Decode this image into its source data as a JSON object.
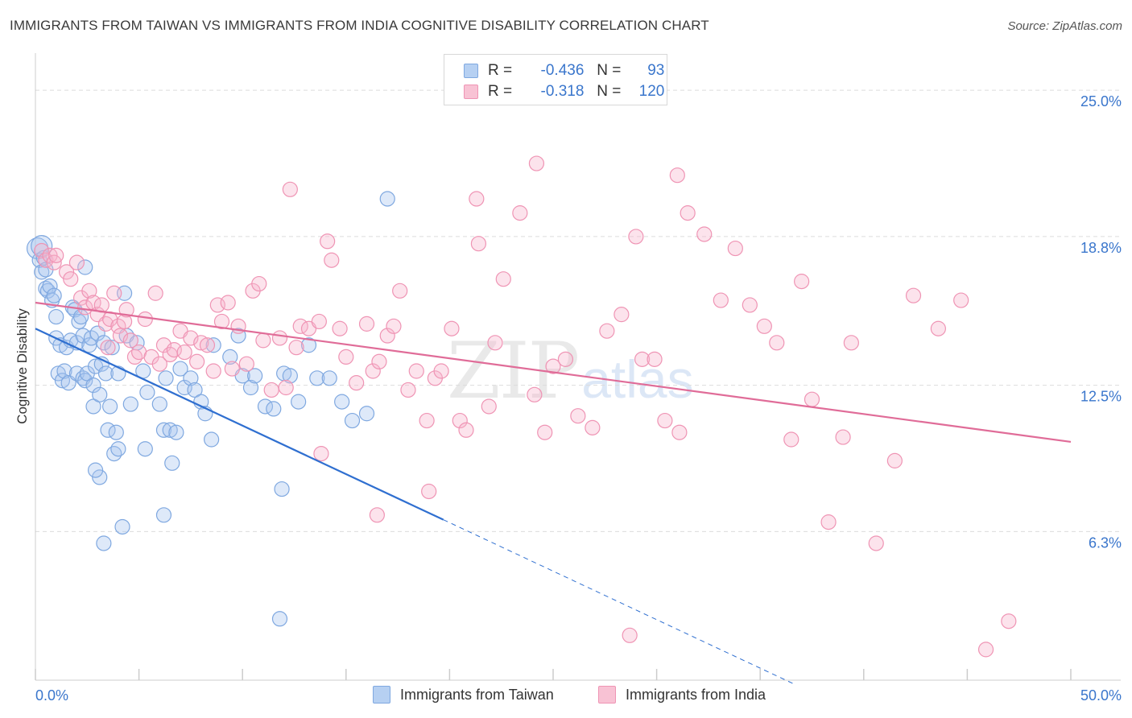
{
  "chart_data": {
    "type": "scatter",
    "title": "IMMIGRANTS FROM TAIWAN VS IMMIGRANTS FROM INDIA COGNITIVE DISABILITY CORRELATION CHART",
    "source": "Source: ZipAtlas.com",
    "xlabel": "",
    "ylabel": "Cognitive Disability",
    "xlim": [
      0,
      50
    ],
    "ylim": [
      0,
      26.2
    ],
    "x_tick_labels": [
      "0.0%",
      "50.0%"
    ],
    "y_ticks": [
      6.3,
      12.5,
      18.8,
      25.0
    ],
    "y_tick_labels": [
      "6.3%",
      "12.5%",
      "18.8%",
      "25.0%"
    ],
    "grid": true,
    "watermark": {
      "zip": "ZIP",
      "atlas": "atlas"
    },
    "legend": {
      "rows": [
        {
          "r_label": "R =",
          "r_value": "-0.436",
          "n_label": "N =",
          "n_value": "93"
        },
        {
          "r_label": "R =",
          "r_value": "-0.318",
          "n_label": "N =",
          "n_value": "120"
        }
      ]
    },
    "series": [
      {
        "name": "Immigrants from Taiwan",
        "color": "#7fa8e0",
        "fill": "#a9c6ee",
        "line_color": "#2f6fd0",
        "trend": {
          "x0": 0,
          "y0": 14.9,
          "x1": 19.7,
          "y1": 6.8,
          "dash_to_x": 36.7
        },
        "points": [
          [
            0.1,
            18.3
          ],
          [
            0.2,
            17.8
          ],
          [
            0.3,
            17.3
          ],
          [
            0.4,
            17.9
          ],
          [
            0.5,
            16.6
          ],
          [
            0.6,
            16.5
          ],
          [
            0.7,
            16.7
          ],
          [
            0.8,
            16.1
          ],
          [
            0.9,
            16.3
          ],
          [
            1.0,
            15.4
          ],
          [
            1.0,
            14.5
          ],
          [
            1.1,
            13.0
          ],
          [
            1.2,
            14.2
          ],
          [
            1.3,
            12.7
          ],
          [
            1.4,
            13.1
          ],
          [
            1.5,
            14.1
          ],
          [
            1.6,
            12.6
          ],
          [
            1.7,
            14.4
          ],
          [
            1.8,
            15.8
          ],
          [
            1.9,
            15.7
          ],
          [
            2.0,
            14.3
          ],
          [
            2.0,
            13.0
          ],
          [
            2.1,
            15.2
          ],
          [
            2.2,
            15.4
          ],
          [
            2.3,
            14.6
          ],
          [
            2.3,
            12.8
          ],
          [
            2.4,
            12.7
          ],
          [
            2.5,
            13.0
          ],
          [
            2.6,
            14.2
          ],
          [
            2.7,
            14.5
          ],
          [
            2.8,
            12.5
          ],
          [
            2.8,
            11.6
          ],
          [
            2.9,
            13.3
          ],
          [
            3.0,
            14.7
          ],
          [
            3.1,
            12.1
          ],
          [
            3.2,
            13.4
          ],
          [
            3.3,
            14.3
          ],
          [
            3.4,
            13.0
          ],
          [
            3.5,
            10.6
          ],
          [
            3.6,
            11.6
          ],
          [
            3.7,
            14.1
          ],
          [
            3.8,
            9.6
          ],
          [
            3.9,
            10.5
          ],
          [
            4.0,
            9.8
          ],
          [
            3.1,
            8.6
          ],
          [
            2.9,
            8.9
          ],
          [
            4.2,
            6.5
          ],
          [
            3.3,
            5.8
          ],
          [
            4.3,
            16.4
          ],
          [
            4.4,
            14.6
          ],
          [
            4.6,
            11.7
          ],
          [
            4.9,
            14.3
          ],
          [
            5.2,
            13.1
          ],
          [
            5.3,
            9.8
          ],
          [
            5.4,
            12.2
          ],
          [
            6.0,
            11.7
          ],
          [
            6.2,
            10.6
          ],
          [
            6.3,
            12.8
          ],
          [
            6.5,
            10.6
          ],
          [
            6.6,
            9.2
          ],
          [
            6.8,
            10.5
          ],
          [
            7.0,
            13.2
          ],
          [
            7.2,
            12.4
          ],
          [
            7.5,
            12.8
          ],
          [
            7.7,
            12.3
          ],
          [
            8.0,
            11.8
          ],
          [
            8.2,
            11.3
          ],
          [
            8.6,
            14.2
          ],
          [
            9.4,
            13.7
          ],
          [
            9.8,
            14.6
          ],
          [
            10.0,
            12.9
          ],
          [
            10.4,
            12.4
          ],
          [
            10.6,
            12.9
          ],
          [
            11.1,
            11.6
          ],
          [
            11.5,
            11.5
          ],
          [
            12.0,
            13.0
          ],
          [
            12.3,
            12.9
          ],
          [
            12.7,
            11.8
          ],
          [
            13.2,
            14.2
          ],
          [
            13.6,
            12.8
          ],
          [
            14.2,
            12.8
          ],
          [
            14.8,
            11.8
          ],
          [
            15.3,
            11.0
          ],
          [
            16.0,
            11.3
          ],
          [
            11.9,
            8.1
          ],
          [
            8.5,
            10.2
          ],
          [
            6.2,
            7.0
          ],
          [
            11.8,
            2.6
          ],
          [
            17.0,
            20.4
          ],
          [
            2.4,
            17.5
          ],
          [
            0.3,
            18.4
          ],
          [
            0.5,
            17.4
          ],
          [
            4.0,
            13.0
          ]
        ]
      },
      {
        "name": "Immigrants from India",
        "color": "#ef94b4",
        "fill": "#f7b6cc",
        "line_color": "#e06c98",
        "trend": {
          "x0": 0,
          "y0": 16.0,
          "x1": 50,
          "y1": 10.1
        },
        "points": [
          [
            0.3,
            18.2
          ],
          [
            0.5,
            17.8
          ],
          [
            0.7,
            18.0
          ],
          [
            0.9,
            17.7
          ],
          [
            1.0,
            18.0
          ],
          [
            1.5,
            17.3
          ],
          [
            1.7,
            17.0
          ],
          [
            2.0,
            17.7
          ],
          [
            2.2,
            16.2
          ],
          [
            2.4,
            15.8
          ],
          [
            2.6,
            16.5
          ],
          [
            2.8,
            16.0
          ],
          [
            3.0,
            15.5
          ],
          [
            3.2,
            15.9
          ],
          [
            3.4,
            15.1
          ],
          [
            3.5,
            14.1
          ],
          [
            3.6,
            15.3
          ],
          [
            3.8,
            16.4
          ],
          [
            4.0,
            15.0
          ],
          [
            4.1,
            14.6
          ],
          [
            4.3,
            15.2
          ],
          [
            4.4,
            15.7
          ],
          [
            4.6,
            14.4
          ],
          [
            4.8,
            13.7
          ],
          [
            5.0,
            13.9
          ],
          [
            5.3,
            15.3
          ],
          [
            5.6,
            13.7
          ],
          [
            5.8,
            16.4
          ],
          [
            6.0,
            13.4
          ],
          [
            6.2,
            14.2
          ],
          [
            6.5,
            13.8
          ],
          [
            6.7,
            14.0
          ],
          [
            7.0,
            14.8
          ],
          [
            7.2,
            13.9
          ],
          [
            7.5,
            14.5
          ],
          [
            7.8,
            13.5
          ],
          [
            8.0,
            14.3
          ],
          [
            8.3,
            14.2
          ],
          [
            8.6,
            13.1
          ],
          [
            8.8,
            15.9
          ],
          [
            9.0,
            15.2
          ],
          [
            9.3,
            16.0
          ],
          [
            9.5,
            13.2
          ],
          [
            9.8,
            15.0
          ],
          [
            10.2,
            13.4
          ],
          [
            10.5,
            16.5
          ],
          [
            10.8,
            16.8
          ],
          [
            11.0,
            14.4
          ],
          [
            11.4,
            12.3
          ],
          [
            11.8,
            14.5
          ],
          [
            12.1,
            12.4
          ],
          [
            12.6,
            14.1
          ],
          [
            12.8,
            15.0
          ],
          [
            13.2,
            14.9
          ],
          [
            13.7,
            15.2
          ],
          [
            14.1,
            18.6
          ],
          [
            14.3,
            17.8
          ],
          [
            14.7,
            14.9
          ],
          [
            15.0,
            13.7
          ],
          [
            15.5,
            12.6
          ],
          [
            16.0,
            15.1
          ],
          [
            16.3,
            13.1
          ],
          [
            16.6,
            13.5
          ],
          [
            17.0,
            14.6
          ],
          [
            17.3,
            15.0
          ],
          [
            17.6,
            16.5
          ],
          [
            18.0,
            12.3
          ],
          [
            18.4,
            13.1
          ],
          [
            18.9,
            11.0
          ],
          [
            19.3,
            12.8
          ],
          [
            19.6,
            13.1
          ],
          [
            20.1,
            14.9
          ],
          [
            20.5,
            11.0
          ],
          [
            20.8,
            10.6
          ],
          [
            21.4,
            18.5
          ],
          [
            21.9,
            11.6
          ],
          [
            22.2,
            14.3
          ],
          [
            22.6,
            17.0
          ],
          [
            23.4,
            19.8
          ],
          [
            24.1,
            12.1
          ],
          [
            24.6,
            10.5
          ],
          [
            25.0,
            13.3
          ],
          [
            25.6,
            13.6
          ],
          [
            26.2,
            11.2
          ],
          [
            26.9,
            10.7
          ],
          [
            27.6,
            14.8
          ],
          [
            28.3,
            15.5
          ],
          [
            29.0,
            18.8
          ],
          [
            29.3,
            13.6
          ],
          [
            29.9,
            13.6
          ],
          [
            30.4,
            11.0
          ],
          [
            31.1,
            10.5
          ],
          [
            31.5,
            19.8
          ],
          [
            32.3,
            18.9
          ],
          [
            33.1,
            16.1
          ],
          [
            33.8,
            18.3
          ],
          [
            34.5,
            15.9
          ],
          [
            35.2,
            15.0
          ],
          [
            35.8,
            14.3
          ],
          [
            36.5,
            10.2
          ],
          [
            37.0,
            16.9
          ],
          [
            37.5,
            11.9
          ],
          [
            38.3,
            6.7
          ],
          [
            39.4,
            14.3
          ],
          [
            40.6,
            5.8
          ],
          [
            41.5,
            9.3
          ],
          [
            42.4,
            16.3
          ],
          [
            43.6,
            14.9
          ],
          [
            44.7,
            16.1
          ],
          [
            45.9,
            1.3
          ],
          [
            31.0,
            21.4
          ],
          [
            24.2,
            21.9
          ],
          [
            21.3,
            20.4
          ],
          [
            13.8,
            9.6
          ],
          [
            12.3,
            20.8
          ],
          [
            16.5,
            7.0
          ],
          [
            28.7,
            1.9
          ],
          [
            39.0,
            10.3
          ],
          [
            47.0,
            2.5
          ],
          [
            19.0,
            8.0
          ]
        ]
      }
    ]
  }
}
